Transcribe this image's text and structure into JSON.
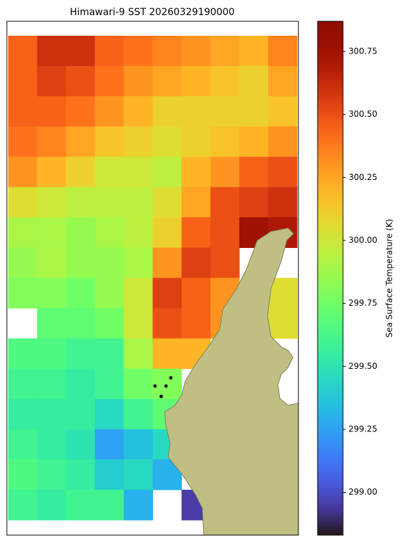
{
  "chart_data": {
    "type": "heatmap",
    "title": "Himawari-9 SST 20260329190000",
    "colorbar_label": "Sea Surface Temperature (K)",
    "colormap": "turbo",
    "clim": [
      298.83,
      300.87
    ],
    "cticks": [
      {
        "value": 299,
        "label": "299.00"
      },
      {
        "value": 299.25,
        "label": "299.25"
      },
      {
        "value": 299.5,
        "label": "299.50"
      },
      {
        "value": 299.75,
        "label": "299.75"
      },
      {
        "value": 300,
        "label": "300.00"
      },
      {
        "value": 300.25,
        "label": "300.25"
      },
      {
        "value": 300.5,
        "label": "300.50"
      },
      {
        "value": 300.75,
        "label": "300.75"
      }
    ],
    "z": [
      [
        300.45,
        300.6,
        300.6,
        300.45,
        300.4,
        300.35,
        300.3,
        300.25,
        300.2,
        300.35
      ],
      [
        300.45,
        300.55,
        300.5,
        300.4,
        300.3,
        300.25,
        300.2,
        300.15,
        300.1,
        300.25
      ],
      [
        300.45,
        300.45,
        300.4,
        300.3,
        300.2,
        300.1,
        300.1,
        300.1,
        300.1,
        300.15
      ],
      [
        300.4,
        300.35,
        300.25,
        300.15,
        300.1,
        300.05,
        300.1,
        300.15,
        300.2,
        300.3
      ],
      [
        300.3,
        300.2,
        300.1,
        300.0,
        300.0,
        299.95,
        300.2,
        300.3,
        300.45,
        300.5
      ],
      [
        300.05,
        300.0,
        299.95,
        299.95,
        299.95,
        300.05,
        300.25,
        300.5,
        300.55,
        300.6
      ],
      [
        299.9,
        299.9,
        299.85,
        299.9,
        299.95,
        300.1,
        300.45,
        300.5,
        300.75,
        300.7
      ],
      [
        299.85,
        299.9,
        299.85,
        299.85,
        299.9,
        300.3,
        300.55,
        300.5,
        null,
        null
      ],
      [
        299.8,
        299.8,
        299.75,
        299.85,
        300.0,
        300.55,
        300.45,
        300.3,
        null,
        300.05
      ],
      [
        null,
        299.7,
        299.7,
        299.75,
        300.0,
        300.5,
        300.45,
        300.3,
        null,
        300.05
      ],
      [
        299.65,
        299.65,
        299.6,
        299.6,
        299.9,
        300.2,
        300.2,
        null,
        null,
        null
      ],
      [
        299.6,
        299.6,
        299.55,
        299.6,
        299.75,
        299.8,
        null,
        null,
        null,
        null
      ],
      [
        299.55,
        299.55,
        299.55,
        299.45,
        299.6,
        299.7,
        null,
        null,
        null,
        null
      ],
      [
        299.6,
        299.55,
        299.5,
        299.25,
        299.35,
        299.45,
        null,
        null,
        null,
        null
      ],
      [
        299.65,
        299.6,
        299.55,
        299.4,
        299.45,
        299.3,
        null,
        null,
        null,
        null
      ],
      [
        299.6,
        299.55,
        299.6,
        299.6,
        299.3,
        null,
        298.95,
        null,
        null,
        null
      ]
    ]
  }
}
